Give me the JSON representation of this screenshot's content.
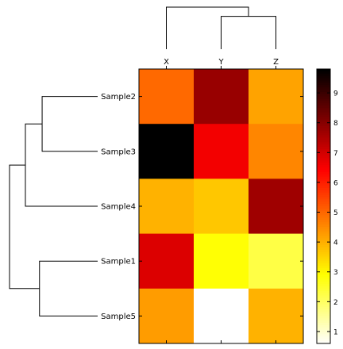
{
  "chart_data": {
    "type": "heatmap",
    "columns": [
      "X",
      "Y",
      "Z"
    ],
    "rows": [
      "Sample2",
      "Sample3",
      "Sample4",
      "Sample1",
      "Sample5"
    ],
    "values": [
      [
        5.0,
        7.8,
        4.2
      ],
      [
        9.8,
        6.6,
        4.6
      ],
      [
        4.0,
        3.7,
        7.7
      ],
      [
        6.9,
        2.9,
        2.3
      ],
      [
        4.3,
        0.6,
        4.0
      ]
    ],
    "colorbar": {
      "vmin": 0.6,
      "vmax": 9.8,
      "ticks": [
        "1",
        "2",
        "3",
        "4",
        "5",
        "6",
        "7",
        "8",
        "9"
      ],
      "colormap": "hot_r"
    },
    "row_dendrogram": {
      "leaf_order": [
        "Sample2",
        "Sample3",
        "Sample4",
        "Sample1",
        "Sample5"
      ],
      "merges": [
        {
          "left": "Sample2",
          "right": "Sample3",
          "height": 0.63
        },
        {
          "left": "Sample2+Sample3",
          "right": "Sample4",
          "height": 0.82
        },
        {
          "left": "Sample1",
          "right": "Sample5",
          "height": 0.66
        },
        {
          "left": "Sample2+Sample3+Sample4",
          "right": "Sample1+Sample5",
          "height": 1.0
        }
      ]
    },
    "column_dendrogram": {
      "leaf_order": [
        "X",
        "Y",
        "Z"
      ],
      "merges": [
        {
          "left": "Y",
          "right": "Z",
          "height": 0.78
        },
        {
          "left": "X",
          "right": "Y+Z",
          "height": 1.0
        }
      ]
    }
  }
}
